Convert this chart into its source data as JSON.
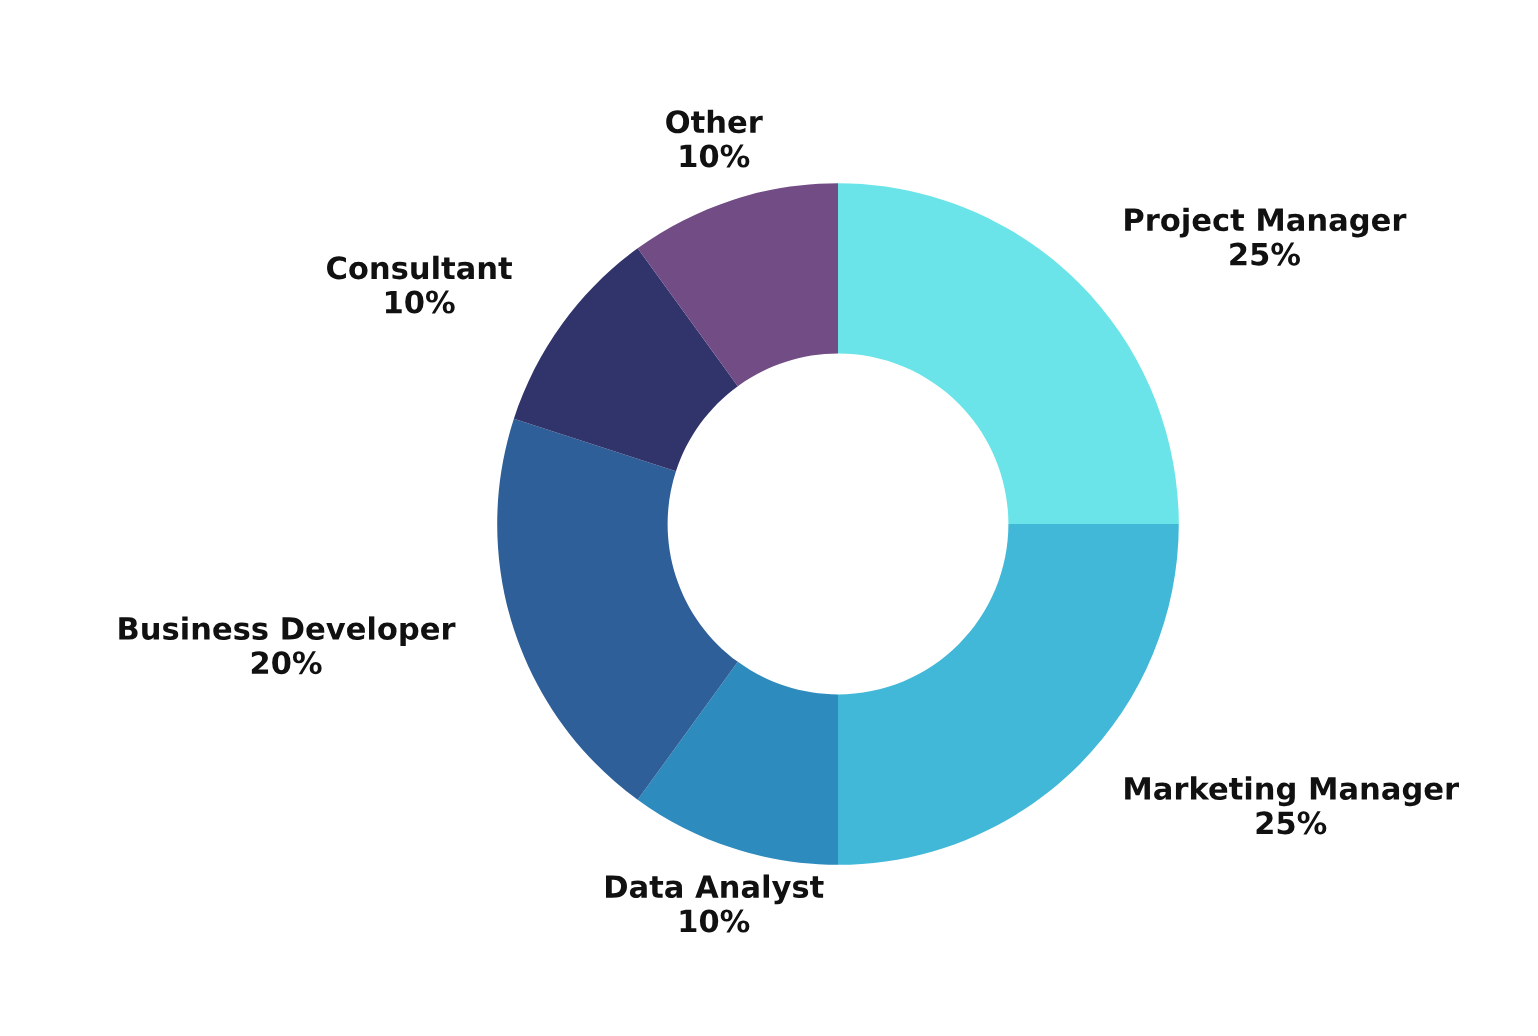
{
  "chart_data": {
    "type": "donut",
    "categories": [
      "Project Manager",
      "Marketing Manager",
      "Data Analyst",
      "Business Developer",
      "Consultant",
      "Other"
    ],
    "values": [
      25,
      25,
      10,
      20,
      10,
      10
    ],
    "value_labels": [
      "25%",
      "25%",
      "10%",
      "20%",
      "10%",
      "10%"
    ],
    "colors": [
      "#6ae4e8",
      "#42b8d8",
      "#2e8bbd",
      "#2e5f98",
      "#30346b",
      "#714c85"
    ],
    "legend": false
  }
}
